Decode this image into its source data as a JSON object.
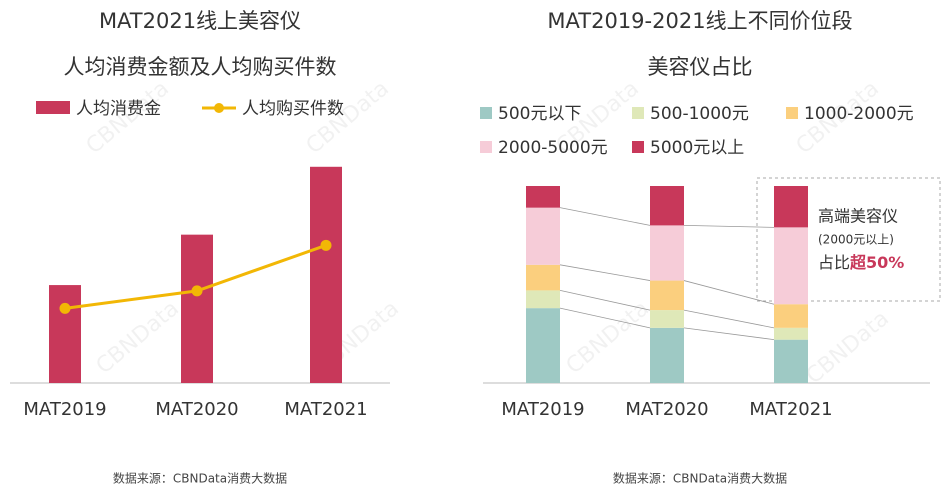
{
  "chart_data": [
    {
      "type": "combo",
      "title": "MAT2021线上美容仪",
      "subtitle": "人均消费金额及人均购买件数",
      "categories": [
        "MAT2019",
        "MAT2020",
        "MAT2021"
      ],
      "series": [
        {
          "name": "人均消费金",
          "type": "bar",
          "color": "#c8385a",
          "values": [
            101,
            153,
            223
          ]
        },
        {
          "name": "人均购买件数",
          "type": "line",
          "color": "#f2b705",
          "values": [
            77,
            95,
            142
          ]
        }
      ],
      "ylim": [
        0,
        230
      ],
      "source": "数据来源：CBNData消费大数据",
      "watermark": "CBNData"
    },
    {
      "type": "bar",
      "stacked": true,
      "title": "MAT2019-2021线上不同价位段",
      "subtitle": "美容仪占比",
      "categories": [
        "MAT2019",
        "MAT2020",
        "MAT2021"
      ],
      "series": [
        {
          "name": "500元以下",
          "color": "#9ec9c4",
          "values": [
            38,
            28,
            22
          ]
        },
        {
          "name": "500-1000元",
          "color": "#dfe8b8",
          "values": [
            9,
            9,
            6
          ]
        },
        {
          "name": "1000-2000元",
          "color": "#fbcf7e",
          "values": [
            13,
            15,
            12
          ]
        },
        {
          "name": "2000-5000元",
          "color": "#f6ccd8",
          "values": [
            29,
            28,
            39
          ]
        },
        {
          "name": "5000元以上",
          "color": "#c8385a",
          "values": [
            11,
            20,
            21
          ]
        }
      ],
      "ylim": [
        0,
        100
      ],
      "annotation": {
        "line1": "高端美容仪",
        "line2": "(2000元以上)",
        "line3a": "占比",
        "line3b": "超50%"
      },
      "source": "数据来源：CBNData消费大数据",
      "watermark": "CBNData"
    }
  ]
}
